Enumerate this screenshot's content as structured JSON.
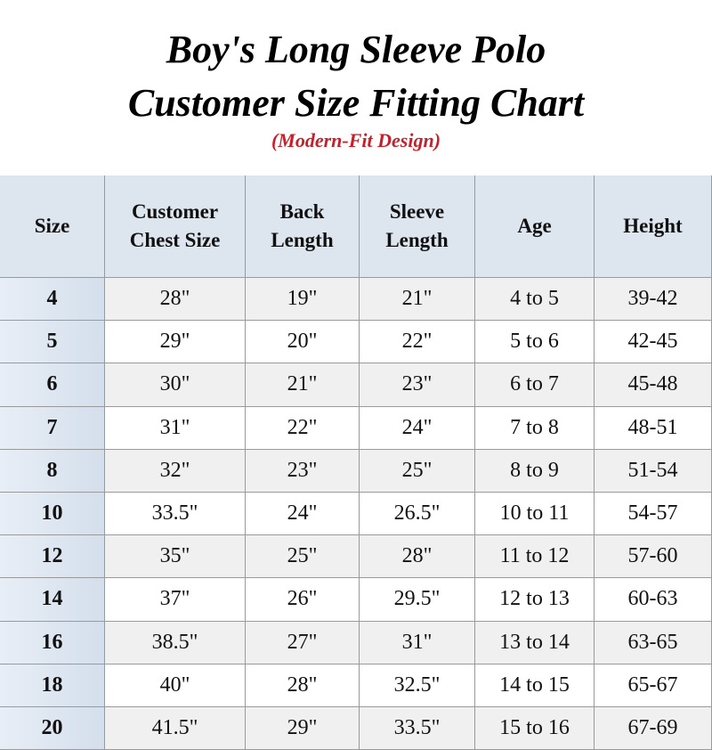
{
  "header": {
    "title_line1": "Boy's Long Sleeve Polo",
    "title_line2": "Customer Size Fitting Chart",
    "subtitle": "(Modern-Fit Design)"
  },
  "table": {
    "columns": [
      "Size",
      "Customer\nChest Size",
      "Back\nLength",
      "Sleeve\nLength",
      "Age",
      "Height"
    ],
    "rows": [
      [
        "4",
        "28\"",
        "19\"",
        "21\"",
        "4 to 5",
        "39-42"
      ],
      [
        "5",
        "29\"",
        "20\"",
        "22\"",
        "5 to 6",
        "42-45"
      ],
      [
        "6",
        "30\"",
        "21\"",
        "23\"",
        "6 to 7",
        "45-48"
      ],
      [
        "7",
        "31\"",
        "22\"",
        "24\"",
        "7 to 8",
        "48-51"
      ],
      [
        "8",
        "32\"",
        "23\"",
        "25\"",
        "8 to 9",
        "51-54"
      ],
      [
        "10",
        "33.5\"",
        "24\"",
        "26.5\"",
        "10 to 11",
        "54-57"
      ],
      [
        "12",
        "35\"",
        "25\"",
        "28\"",
        "11 to 12",
        "57-60"
      ],
      [
        "14",
        "37\"",
        "26\"",
        "29.5\"",
        "12 to 13",
        "60-63"
      ],
      [
        "16",
        "38.5\"",
        "27\"",
        "31\"",
        "13 to 14",
        "63-65"
      ],
      [
        "18",
        "40\"",
        "28\"",
        "32.5\"",
        "14 to 15",
        "65-67"
      ],
      [
        "20",
        "41.5\"",
        "29\"",
        "33.5\"",
        "15 to 16",
        "67-69"
      ]
    ]
  }
}
